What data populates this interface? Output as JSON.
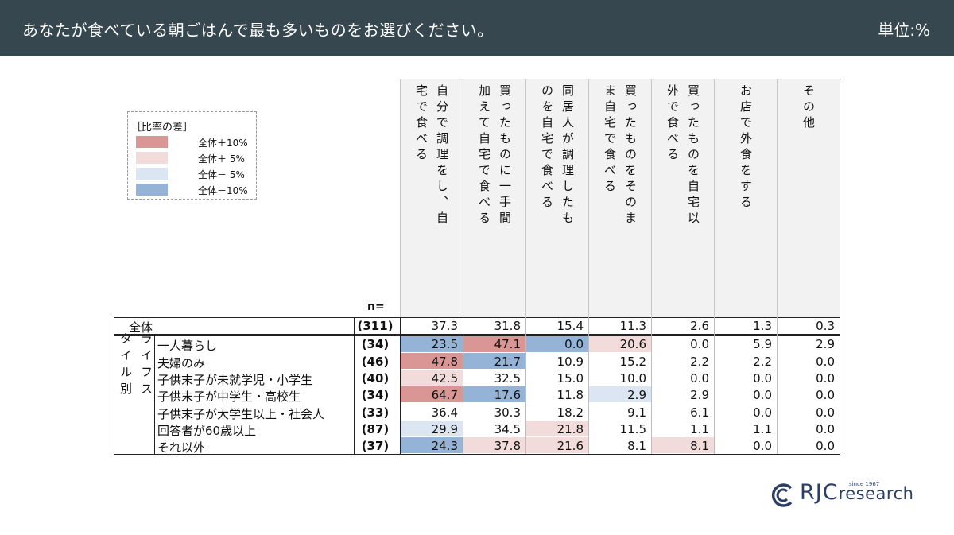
{
  "header": {
    "title": "あなたが食べている朝ごはんで最も多いものをお選びください。",
    "unit": "単位:%"
  },
  "legend": {
    "title": "［比率の差］",
    "items": [
      {
        "label": "全体＋10%",
        "color": "#d99694"
      },
      {
        "label": "全体＋ 5%",
        "color": "#f2dcdb"
      },
      {
        "label": "全体－ 5%",
        "color": "#dce6f2"
      },
      {
        "label": "全体－10%",
        "color": "#95b3d7"
      }
    ]
  },
  "colors": {
    "plus10": "#d99694",
    "plus5": "#f2dcdb",
    "minus5": "#dce6f2",
    "minus10": "#95b3d7",
    "header_bg": "#36474f"
  },
  "chart_data": {
    "type": "table",
    "n_label": "n=",
    "group_label": "ライフスタイル別",
    "columns": [
      "自分で調理をし、自宅で食べる",
      "買ったものに一手間加えて自宅で食べる",
      "同居人が調理したものを自宅で食べる",
      "買ったものをそのまま自宅で食べる",
      "買ったものを自宅以外で食べる",
      "お店で外食をする",
      "その他"
    ],
    "total": {
      "label": "全体",
      "n": "(311)",
      "values": [
        "37.3",
        "31.8",
        "15.4",
        "11.3",
        "2.6",
        "1.3",
        "0.3"
      ]
    },
    "rows": [
      {
        "label": "一人暮らし",
        "n": "(34)",
        "values": [
          "23.5",
          "47.1",
          "0.0",
          "20.6",
          "0.0",
          "5.9",
          "2.9"
        ],
        "highlight": [
          "minus10",
          "plus10",
          "minus10",
          "plus5",
          "",
          "",
          ""
        ]
      },
      {
        "label": "夫婦のみ",
        "n": "(46)",
        "values": [
          "47.8",
          "21.7",
          "10.9",
          "15.2",
          "2.2",
          "2.2",
          "0.0"
        ],
        "highlight": [
          "plus10",
          "minus10",
          "",
          "",
          "",
          "",
          ""
        ]
      },
      {
        "label": "子供末子が未就学児・小学生",
        "n": "(40)",
        "values": [
          "42.5",
          "32.5",
          "15.0",
          "10.0",
          "0.0",
          "0.0",
          "0.0"
        ],
        "highlight": [
          "plus5",
          "",
          "",
          "",
          "",
          "",
          ""
        ]
      },
      {
        "label": "子供末子が中学生・高校生",
        "n": "(34)",
        "values": [
          "64.7",
          "17.6",
          "11.8",
          "2.9",
          "2.9",
          "0.0",
          "0.0"
        ],
        "highlight": [
          "plus10",
          "minus10",
          "",
          "minus5",
          "",
          "",
          ""
        ]
      },
      {
        "label": "子供末子が大学生以上・社会人",
        "n": "(33)",
        "values": [
          "36.4",
          "30.3",
          "18.2",
          "9.1",
          "6.1",
          "0.0",
          "0.0"
        ],
        "highlight": [
          "",
          "",
          "",
          "",
          "",
          "",
          ""
        ]
      },
      {
        "label": "回答者が60歳以上",
        "n": "(87)",
        "values": [
          "29.9",
          "34.5",
          "21.8",
          "11.5",
          "1.1",
          "1.1",
          "0.0"
        ],
        "highlight": [
          "minus5",
          "",
          "plus5",
          "",
          "",
          "",
          ""
        ]
      },
      {
        "label": "それ以外",
        "n": "(37)",
        "values": [
          "24.3",
          "37.8",
          "21.6",
          "8.1",
          "8.1",
          "0.0",
          "0.0"
        ],
        "highlight": [
          "minus10",
          "plus5",
          "plus5",
          "",
          "plus5",
          "",
          ""
        ]
      }
    ]
  },
  "logo": {
    "text": "RJCresearch",
    "since": "since 1967"
  }
}
